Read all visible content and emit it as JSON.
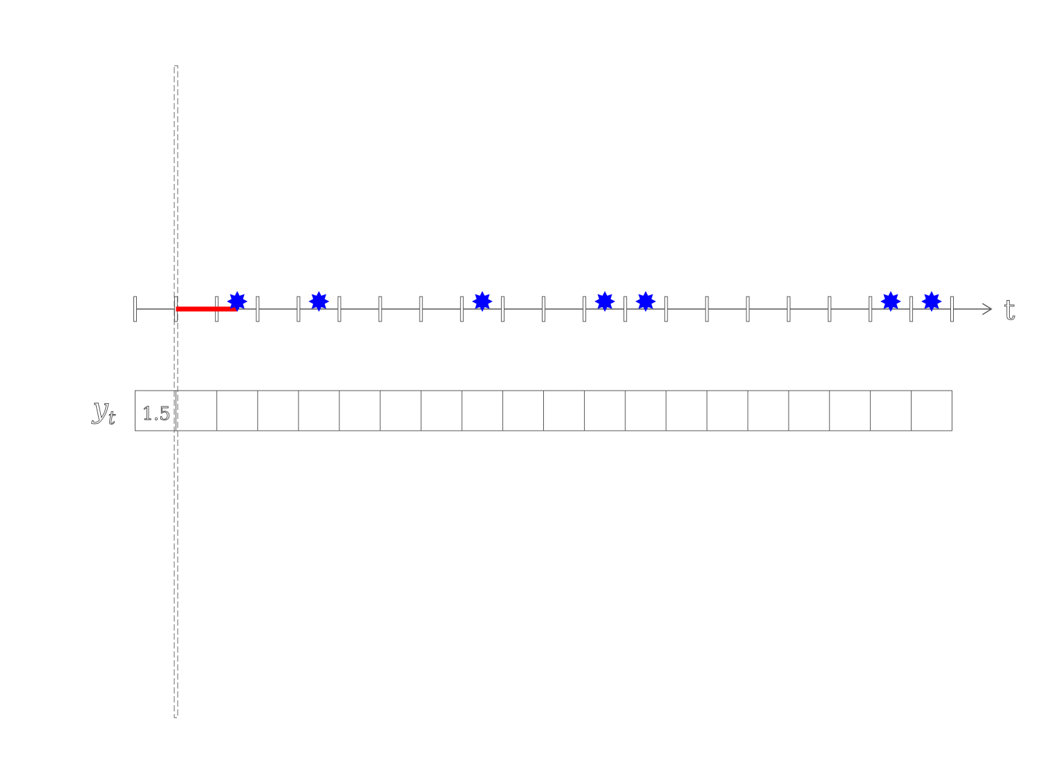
{
  "diagram": {
    "axis_label": "t",
    "row_label": "y",
    "row_label_subscript": "t",
    "cells": [
      "1.5",
      "",
      "",
      "",
      "",
      "",
      "",
      "",
      "",
      "",
      "",
      "",
      "",
      "",
      "",
      "",
      "",
      "",
      "",
      ""
    ],
    "tick_count": 21,
    "current_index": 1,
    "red_segment": {
      "start": 1,
      "end": 2.5
    },
    "events": [
      2.5,
      4.5,
      8.5,
      11.5,
      12.5,
      18.5,
      19.5
    ],
    "colors": {
      "event": "#0000ff",
      "segment": "#ff0000",
      "line": "#555555"
    },
    "icons": {
      "event": "eight-point-star-icon",
      "axis_end": "arrow-head-icon"
    }
  }
}
